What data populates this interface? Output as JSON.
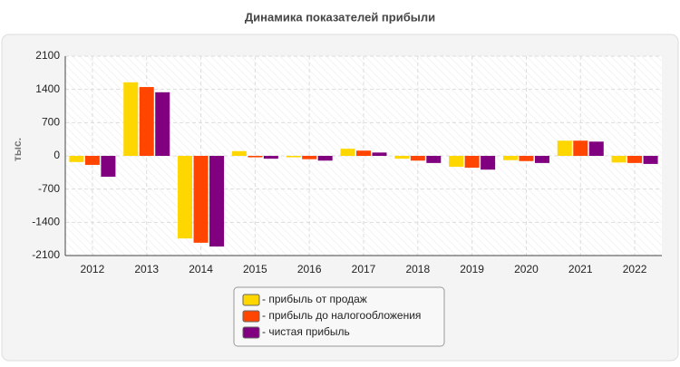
{
  "chart_data": {
    "type": "bar",
    "title": "Динамика показателей прибыли",
    "y_label": "тыс.",
    "categories": [
      "2012",
      "2013",
      "2014",
      "2015",
      "2016",
      "2017",
      "2018",
      "2019",
      "2020",
      "2021",
      "2022"
    ],
    "series": [
      {
        "name": "- прибыль от продаж",
        "color": "#ffd700",
        "values": [
          -130,
          1550,
          -1740,
          100,
          -30,
          150,
          -60,
          -230,
          -90,
          320,
          -140
        ]
      },
      {
        "name": "- прибыль до налогообложения",
        "color": "#ff4500",
        "values": [
          -190,
          1450,
          -1830,
          -30,
          -70,
          110,
          -100,
          -250,
          -110,
          320,
          -150
        ]
      },
      {
        "name": "- чистая прибыль",
        "color": "#800080",
        "values": [
          -440,
          1340,
          -1910,
          -60,
          -100,
          70,
          -150,
          -290,
          -150,
          300,
          -170
        ]
      }
    ],
    "ylim": [
      -2100,
      2100
    ],
    "yticks": [
      2100,
      1400,
      700,
      0,
      -700,
      -1400,
      -2100
    ],
    "grid": true,
    "legend": "bottom"
  }
}
